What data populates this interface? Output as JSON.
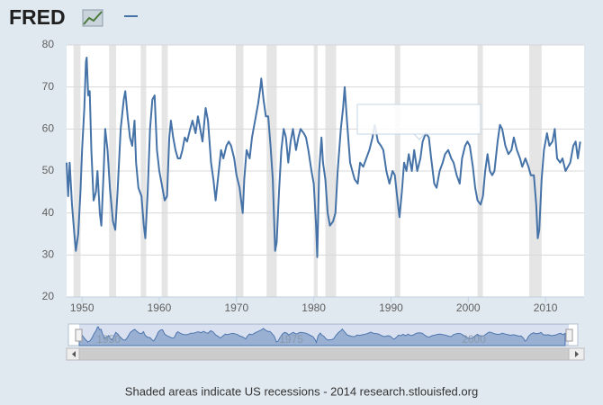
{
  "logo": "FRED",
  "footer": "Shaded areas indicate US recessions - 2014 research.stlouisfed.org",
  "chart_data": {
    "type": "line",
    "x": [
      1948.0,
      1948.2,
      1948.4,
      1948.7,
      1949.0,
      1949.2,
      1949.5,
      1949.8,
      1950.0,
      1950.3,
      1950.5,
      1950.6,
      1950.8,
      1951.0,
      1951.2,
      1951.5,
      1951.8,
      1952.0,
      1952.3,
      1952.5,
      1952.8,
      1953.0,
      1953.3,
      1953.6,
      1954.0,
      1954.3,
      1954.6,
      1955.0,
      1955.4,
      1955.6,
      1955.9,
      1956.2,
      1956.5,
      1956.8,
      1957.0,
      1957.3,
      1957.7,
      1958.0,
      1958.2,
      1958.5,
      1958.8,
      1959.1,
      1959.4,
      1959.7,
      1960.0,
      1960.3,
      1960.7,
      1961.0,
      1961.3,
      1961.5,
      1961.8,
      1962.1,
      1962.4,
      1962.7,
      1963.0,
      1963.3,
      1963.6,
      1964.0,
      1964.3,
      1964.7,
      1965.0,
      1965.3,
      1965.6,
      1966.0,
      1966.3,
      1966.7,
      1967.0,
      1967.3,
      1967.7,
      1968.0,
      1968.3,
      1968.7,
      1969.0,
      1969.3,
      1969.7,
      1970.0,
      1970.4,
      1970.8,
      1971.0,
      1971.3,
      1971.7,
      1972.0,
      1972.4,
      1972.8,
      1973.1,
      1973.2,
      1973.5,
      1973.8,
      1974.1,
      1974.4,
      1974.7,
      1975.0,
      1975.2,
      1975.5,
      1975.8,
      1976.1,
      1976.4,
      1976.7,
      1977.0,
      1977.3,
      1977.7,
      1978.0,
      1978.3,
      1978.7,
      1979.0,
      1979.3,
      1979.7,
      1980.0,
      1980.3,
      1980.45,
      1980.7,
      1981.0,
      1981.2,
      1981.5,
      1981.8,
      1982.1,
      1982.5,
      1982.8,
      1983.1,
      1983.5,
      1983.8,
      1984.0,
      1984.3,
      1984.7,
      1985.0,
      1985.3,
      1985.7,
      1986.0,
      1986.4,
      1986.8,
      1987.2,
      1987.6,
      1987.9,
      1988.3,
      1988.7,
      1989.0,
      1989.4,
      1989.8,
      1990.2,
      1990.5,
      1990.9,
      1991.1,
      1991.4,
      1991.7,
      1992.0,
      1992.3,
      1992.7,
      1993.0,
      1993.4,
      1993.8,
      1994.1,
      1994.5,
      1994.9,
      1995.2,
      1995.6,
      1995.9,
      1996.3,
      1996.7,
      1997.0,
      1997.4,
      1997.8,
      1998.1,
      1998.5,
      1998.9,
      1999.2,
      1999.6,
      1999.9,
      2000.2,
      2000.6,
      2000.9,
      2001.2,
      2001.6,
      2001.9,
      2002.2,
      2002.5,
      2002.8,
      2003.1,
      2003.4,
      2003.8,
      2004.1,
      2004.4,
      2004.8,
      2005.2,
      2005.6,
      2005.9,
      2006.3,
      2006.7,
      2007.0,
      2007.4,
      2007.8,
      2008.1,
      2008.5,
      2008.8,
      2009.0,
      2009.2,
      2009.5,
      2009.8,
      2010.2,
      2010.5,
      2010.9,
      2011.2,
      2011.5,
      2011.9,
      2012.2,
      2012.6,
      2012.9,
      2013.2,
      2013.6,
      2013.9,
      2014.2,
      2014.5
    ],
    "series": [
      {
        "color": "#4572a7",
        "values": [
          52,
          44,
          52,
          42,
          35,
          31,
          35,
          45,
          55,
          65,
          76,
          77,
          68,
          69,
          55,
          43,
          45,
          50,
          40,
          37,
          50,
          60,
          55,
          46,
          38,
          36,
          45,
          60,
          67,
          69,
          63,
          58,
          56,
          62,
          52,
          46,
          44,
          37,
          34,
          45,
          60,
          67,
          68,
          55,
          50,
          47,
          43,
          44,
          58,
          62,
          58,
          55,
          53,
          53,
          55,
          58,
          57,
          60,
          62,
          59,
          63,
          60,
          57,
          65,
          62,
          52,
          48,
          43,
          50,
          55,
          53,
          56,
          57,
          56,
          53,
          49,
          46,
          40,
          48,
          55,
          53,
          58,
          62,
          66,
          70,
          72,
          67,
          63,
          63,
          56,
          48,
          31,
          33,
          45,
          55,
          60,
          58,
          52,
          57,
          60,
          55,
          58,
          60,
          59,
          58,
          55,
          50,
          47,
          37,
          29.5,
          50,
          58,
          52,
          48,
          40,
          37,
          38,
          40,
          50,
          60,
          65,
          70,
          62,
          52,
          50,
          48,
          47,
          52,
          51,
          53,
          55,
          58,
          61,
          57,
          56,
          55,
          50,
          47,
          50,
          49,
          42,
          39,
          45,
          52,
          50,
          54,
          50,
          55,
          50,
          53,
          57,
          59,
          58,
          53,
          47,
          46,
          50,
          52,
          54,
          55,
          53,
          52,
          49,
          47,
          53,
          56,
          57,
          56,
          51,
          46,
          43,
          42,
          44,
          50,
          54,
          50,
          49,
          50,
          57,
          61,
          60,
          56,
          54,
          55,
          58,
          55,
          53,
          51,
          53,
          51,
          49,
          49,
          42,
          34,
          36,
          48,
          55,
          59,
          56,
          57,
          60,
          53,
          52,
          53,
          50,
          51,
          52,
          56,
          57,
          53,
          57
        ]
      }
    ],
    "recessions": [
      [
        1948.9,
        1949.8
      ],
      [
        1953.5,
        1954.4
      ],
      [
        1957.6,
        1958.3
      ],
      [
        1960.3,
        1961.1
      ],
      [
        1969.9,
        1970.9
      ],
      [
        1973.9,
        1975.2
      ],
      [
        1980.0,
        1980.5
      ],
      [
        1981.5,
        1982.9
      ],
      [
        1990.5,
        1991.2
      ],
      [
        2001.2,
        2001.9
      ],
      [
        2007.9,
        2009.5
      ]
    ],
    "xlim": [
      1948,
      2015
    ],
    "xticks": [
      1950,
      1960,
      1970,
      1980,
      1990,
      2000,
      2010
    ],
    "ylim": [
      20,
      80
    ],
    "yticks": [
      20,
      30,
      40,
      50,
      60,
      70,
      80
    ],
    "grid": true,
    "navigator_ticks": [
      1950,
      1975,
      2000
    ]
  }
}
